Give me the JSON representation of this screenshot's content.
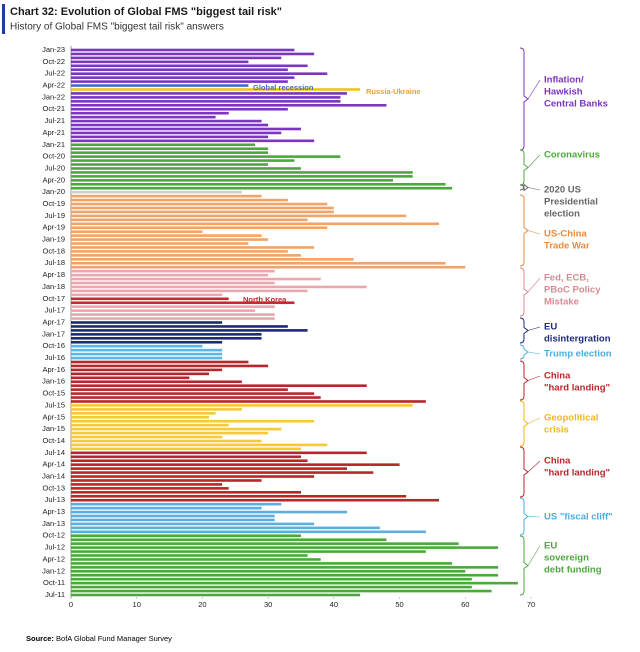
{
  "chart_data": {
    "type": "bar",
    "orientation": "horizontal",
    "title": "Chart 32: Evolution of Global FMS \"biggest tail risk\"",
    "subtitle": "History of Global FMS \"biggest tail risk\" answers",
    "source_label": "Source:",
    "source": "BofA Global Fund Manager Survey",
    "xlim": [
      0,
      70
    ],
    "xticks": [
      0,
      10,
      20,
      30,
      40,
      50,
      60,
      70
    ],
    "categories": [
      "Jan-23",
      null,
      null,
      "Oct-22",
      null,
      null,
      "Jul-22",
      null,
      null,
      "Apr-22",
      null,
      null,
      "Jan-22",
      null,
      null,
      "Oct-21",
      null,
      null,
      "Jul-21",
      null,
      null,
      "Apr-21",
      null,
      null,
      "Jan-21",
      null,
      null,
      "Oct-20",
      null,
      null,
      "Jul-20",
      null,
      null,
      "Apr-20",
      null,
      null,
      "Jan-20",
      null,
      null,
      "Oct-19",
      null,
      null,
      "Jul-19",
      null,
      null,
      "Apr-19",
      null,
      null,
      "Jan-19",
      null,
      null,
      "Oct-18",
      null,
      null,
      "Jul-18",
      null,
      null,
      "Apr-18",
      null,
      null,
      "Jan-18",
      null,
      null,
      "Oct-17",
      null,
      null,
      "Jul-17",
      null,
      null,
      "Apr-17",
      null,
      null,
      "Jan-17",
      null,
      null,
      "Oct-16",
      null,
      null,
      "Jul-16",
      null,
      null,
      "Apr-16",
      null,
      null,
      "Jan-16",
      null,
      null,
      "Oct-15",
      null,
      null,
      "Jul-15",
      null,
      null,
      "Apr-15",
      null,
      null,
      "Jan-15",
      null,
      null,
      "Oct-14",
      null,
      null,
      "Jul-14",
      null,
      null,
      "Apr-14",
      null,
      null,
      "Jan-14",
      null,
      null,
      "Oct-13",
      null,
      null,
      "Jul-13",
      null,
      null,
      "Apr-13",
      null,
      null,
      "Jan-13",
      null,
      null,
      "Oct-12",
      null,
      null,
      "Jul-12",
      null,
      null,
      "Apr-12",
      null,
      null,
      "Jan-12",
      null,
      null,
      "Oct-11",
      null,
      null,
      "Jul-11"
    ],
    "values": [
      34,
      37,
      32,
      27,
      36,
      33,
      39,
      34,
      33,
      27,
      44,
      42,
      41,
      41,
      48,
      33,
      24,
      22,
      29,
      30,
      35,
      32,
      30,
      37,
      28,
      30,
      30,
      41,
      34,
      30,
      35,
      52,
      52,
      49,
      57,
      58,
      26,
      29,
      33,
      39,
      40,
      40,
      51,
      36,
      56,
      39,
      20,
      29,
      30,
      27,
      37,
      33,
      35,
      43,
      57,
      60,
      31,
      30,
      38,
      31,
      45,
      36,
      23,
      24,
      34,
      31,
      28,
      31,
      31,
      23,
      33,
      36,
      29,
      29,
      23,
      20,
      23,
      23,
      23,
      27,
      30,
      23,
      21,
      18,
      26,
      45,
      33,
      37,
      38,
      54,
      52,
      26,
      22,
      21,
      37,
      24,
      32,
      30,
      23,
      29,
      39,
      35,
      45,
      35,
      36,
      50,
      42,
      46,
      37,
      29,
      23,
      24,
      35,
      51,
      56,
      32,
      29,
      42,
      31,
      31,
      37,
      47,
      54,
      35,
      48,
      59,
      65,
      54,
      36,
      38,
      58,
      65,
      60,
      65,
      61,
      68,
      61,
      64,
      44
    ],
    "colors": [
      "#7b35bf",
      "#7b35bf",
      "#7b35bf",
      "#7b35bf",
      "#7b35bf",
      "#7b35bf",
      "#7b35bf",
      "#7b35bf",
      "#7b35bf",
      "#3f6fc6",
      "#f3c316",
      "#7b35bf",
      "#7b35bf",
      "#7b35bf",
      "#7b35bf",
      "#7b35bf",
      "#7b35bf",
      "#7b35bf",
      "#7b35bf",
      "#7b35bf",
      "#7b35bf",
      "#7b35bf",
      "#7b35bf",
      "#7b35bf",
      "#4ca83d",
      "#4ca83d",
      "#4ca83d",
      "#4ca83d",
      "#4ca83d",
      "#4ca83d",
      "#4ca83d",
      "#4ca83d",
      "#4ca83d",
      "#4ca83d",
      "#4ca83d",
      "#4ca83d",
      "#cfcfcf",
      "#f2a468",
      "#f2a468",
      "#f2a468",
      "#f2a468",
      "#f2a468",
      "#f2a468",
      "#f2a468",
      "#f2a468",
      "#f2a468",
      "#f2a468",
      "#f2a468",
      "#f2a468",
      "#f2a468",
      "#f2a468",
      "#f2a468",
      "#f2a468",
      "#f2a468",
      "#f2a468",
      "#f2a468",
      "#eba6ae",
      "#eba6ae",
      "#eba6ae",
      "#eba6ae",
      "#eba6ae",
      "#eba6ae",
      "#eba6ae",
      "#c8282e",
      "#c8282e",
      "#eba6ae",
      "#eba6ae",
      "#eba6ae",
      "#eba6ae",
      "#1c2a78",
      "#1c2a78",
      "#1c2a78",
      "#1c2a78",
      "#1c2a78",
      "#1c2a78",
      "#5ab8e8",
      "#5ab8e8",
      "#5ab8e8",
      "#5ab8e8",
      "#b8262b",
      "#b8262b",
      "#b8262b",
      "#b8262b",
      "#b8262b",
      "#b8262b",
      "#b8262b",
      "#b8262b",
      "#b8262b",
      "#b8262b",
      "#b8262b",
      "#f7c935",
      "#f7c935",
      "#f7c935",
      "#f7c935",
      "#f7c935",
      "#f7c935",
      "#f7c935",
      "#f7c935",
      "#f7c935",
      "#f7c935",
      "#f7c935",
      "#f7c935",
      "#b8262b",
      "#b8262b",
      "#b8262b",
      "#b8262b",
      "#b8262b",
      "#b8262b",
      "#b8262b",
      "#b8262b",
      "#b8262b",
      "#b8262b",
      "#b8262b",
      "#b8262b",
      "#b8262b",
      "#5aaee0",
      "#5aaee0",
      "#5aaee0",
      "#5aaee0",
      "#5aaee0",
      "#5aaee0",
      "#5aaee0",
      "#5aaee0",
      "#4ca83d",
      "#4ca83d",
      "#4ca83d",
      "#4ca83d",
      "#4ca83d",
      "#4ca83d",
      "#4ca83d",
      "#4ca83d",
      "#4ca83d",
      "#4ca83d",
      "#4ca83d",
      "#4ca83d",
      "#4ca83d",
      "#4ca83d",
      "#4ca83d",
      "#4ca83d"
    ],
    "annotations": [
      {
        "text": "Global recession",
        "color": "#3f6fc6"
      },
      {
        "text": "Russia-Ukraine",
        "color": "#e8a13a"
      },
      {
        "text": "North Korea",
        "color": "#c8282e"
      }
    ],
    "groups": [
      {
        "lines": [
          "Inflation/",
          "Hawkish",
          "Central Banks"
        ],
        "color": "#7b35bf"
      },
      {
        "lines": [
          "Coronavirus"
        ],
        "color": "#4ca83d"
      },
      {
        "lines": [
          "2020 US",
          "Presidential",
          "election"
        ],
        "color": "#666666"
      },
      {
        "lines": [
          "US-China",
          "Trade War"
        ],
        "color": "#e98a3c"
      },
      {
        "lines": [
          "Fed, ECB,",
          "PBoC Policy",
          "Mistake"
        ],
        "color": "#d88a92"
      },
      {
        "lines": [
          "EU",
          "disintergration"
        ],
        "color": "#1c2a78"
      },
      {
        "lines": [
          "Trump election"
        ],
        "color": "#4aaee0"
      },
      {
        "lines": [
          "China",
          "\"hard landing\""
        ],
        "color": "#b8262b"
      },
      {
        "lines": [
          "Geopolitical",
          "crisis"
        ],
        "color": "#f2b61c"
      },
      {
        "lines": [
          "China",
          "\"hard landing\""
        ],
        "color": "#b8262b"
      },
      {
        "lines": [
          "US \"fiscal cliff\""
        ],
        "color": "#4aaee0"
      },
      {
        "lines": [
          "EU",
          "sovereign",
          "debt funding"
        ],
        "color": "#4ca83d"
      }
    ]
  }
}
